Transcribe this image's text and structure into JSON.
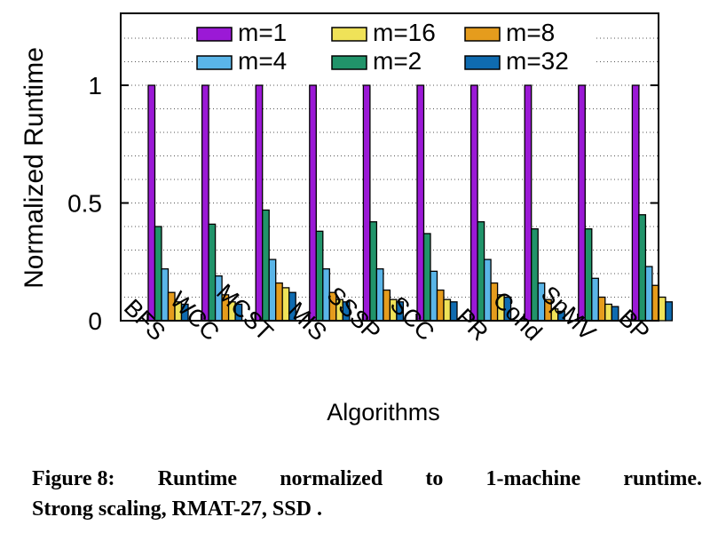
{
  "chart_data": {
    "type": "bar",
    "title": "",
    "xlabel": "Algorithms",
    "ylabel": "Normalized Runtime",
    "ylim": [
      0,
      1.3
    ],
    "yticks": [
      0,
      0.5,
      1
    ],
    "ytick_labels": [
      "0",
      "0.5",
      "1"
    ],
    "grid": true,
    "legend_position": "top",
    "categories": [
      "BFS",
      "WCC",
      "MCST",
      "MIS",
      "SSSP",
      "SCC",
      "PR",
      "Cond",
      "SpMV",
      "BP"
    ],
    "series": [
      {
        "name": "m=1",
        "color": "#9b19d6",
        "values": [
          1,
          1,
          1,
          1,
          1,
          1,
          1,
          1,
          1,
          1
        ]
      },
      {
        "name": "m=2",
        "color": "#21946a",
        "values": [
          0.4,
          0.41,
          0.47,
          0.38,
          0.42,
          0.37,
          0.42,
          0.39,
          0.39,
          0.45
        ]
      },
      {
        "name": "m=4",
        "color": "#5ab5e8",
        "values": [
          0.22,
          0.19,
          0.26,
          0.22,
          0.22,
          0.21,
          0.26,
          0.16,
          0.18,
          0.23
        ]
      },
      {
        "name": "m=8",
        "color": "#e59c1d",
        "values": [
          0.12,
          0.11,
          0.16,
          0.12,
          0.13,
          0.13,
          0.16,
          0.09,
          0.1,
          0.15
        ]
      },
      {
        "name": "m=16",
        "color": "#efe258",
        "values": [
          0.08,
          0.08,
          0.14,
          0.09,
          0.09,
          0.09,
          0.11,
          0.05,
          0.07,
          0.1
        ]
      },
      {
        "name": "m=32",
        "color": "#0f6bb0",
        "values": [
          0.07,
          0.07,
          0.12,
          0.08,
          0.08,
          0.08,
          0.1,
          0.04,
          0.06,
          0.08
        ]
      }
    ],
    "legend_order": [
      "m=1",
      "m=4",
      "m=16",
      "m=2",
      "m=8",
      "m=32"
    ]
  },
  "caption": {
    "label": "Figure 8:",
    "line1_words": [
      "Runtime",
      "normalized",
      "to",
      "1-machine",
      "runtime."
    ],
    "line2": "Strong scaling, RMAT-27, SSD ."
  }
}
